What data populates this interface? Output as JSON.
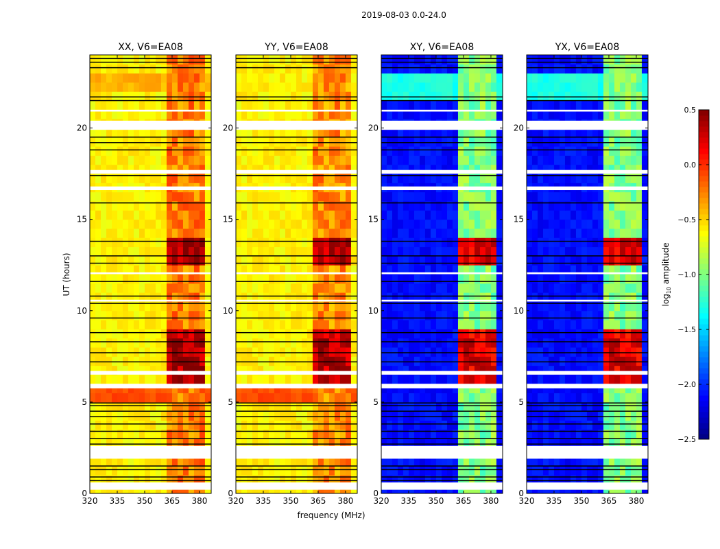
{
  "chart_data": {
    "type": "heatmap",
    "title": "2019-08-03 0.0-24.0",
    "xlabel": "frequency (MHz)",
    "ylabel": "UT (hours)",
    "xlim": [
      320,
      386.4
    ],
    "ylim": [
      0,
      24
    ],
    "xticks": [
      "320",
      "335",
      "350",
      "365",
      "380"
    ],
    "yticks": [
      "0",
      "5",
      "10",
      "15",
      "20"
    ],
    "colorbar": {
      "label": "log10 amplitude",
      "label_main": "log",
      "label_sub": "10",
      "label_rest": " amplitude",
      "range": [
        -2.5,
        0.5
      ],
      "ticks": [
        "0.5",
        "0.0",
        "−0.5",
        "−1.0",
        "−1.5",
        "−2.0",
        "−2.5"
      ],
      "tick_values": [
        0.5,
        0.0,
        -0.5,
        -1.0,
        -1.5,
        -2.0,
        -2.5
      ],
      "colormap": "jet"
    },
    "rfi_band_mhz": [
      363,
      381
    ],
    "strong_hours": [
      [
        5.9,
        9.0
      ],
      [
        12.5,
        14.0
      ]
    ],
    "panels": [
      {
        "title": "XX, V6=EA08",
        "base": -0.6,
        "band": -0.25,
        "strong": 0.35,
        "bright_hours": [
          [
            5.0,
            5.7,
            -0.1
          ],
          [
            21.8,
            23.0,
            -0.4
          ]
        ]
      },
      {
        "title": "YY, V6=EA08",
        "base": -0.6,
        "band": -0.3,
        "strong": 0.3,
        "bright_hours": [
          [
            5.0,
            5.7,
            -0.1
          ]
        ]
      },
      {
        "title": "XY, V6=EA08",
        "base": -2.1,
        "band": -1.0,
        "strong": 0.2,
        "bright_hours": [
          [
            21.3,
            23.0,
            -1.3
          ]
        ]
      },
      {
        "title": "YX, V6=EA08",
        "base": -2.1,
        "band": -1.0,
        "strong": 0.2,
        "bright_hours": [
          [
            21.3,
            23.0,
            -1.3
          ]
        ]
      }
    ],
    "flagged_hours": [
      [
        0.2,
        0.6
      ],
      [
        1.9,
        2.6
      ],
      [
        5.75,
        6.0
      ],
      [
        6.5,
        6.7
      ],
      [
        10.5,
        10.6
      ],
      [
        12.0,
        12.1
      ],
      [
        16.6,
        16.8
      ],
      [
        17.5,
        17.7
      ],
      [
        19.9,
        20.4
      ],
      [
        20.9,
        21.0
      ]
    ],
    "black_lines_hours": [
      0.7,
      0.9,
      1.3,
      1.5,
      2.7,
      3.0,
      3.4,
      3.8,
      4.2,
      4.5,
      4.8,
      4.95,
      7.2,
      7.7,
      8.3,
      8.8,
      9.6,
      10.4,
      10.8,
      11.6,
      12.6,
      13.0,
      13.8,
      15.9,
      17.4,
      18.8,
      19.2,
      19.5,
      21.5,
      21.7,
      23.3,
      23.6,
      23.8
    ]
  }
}
